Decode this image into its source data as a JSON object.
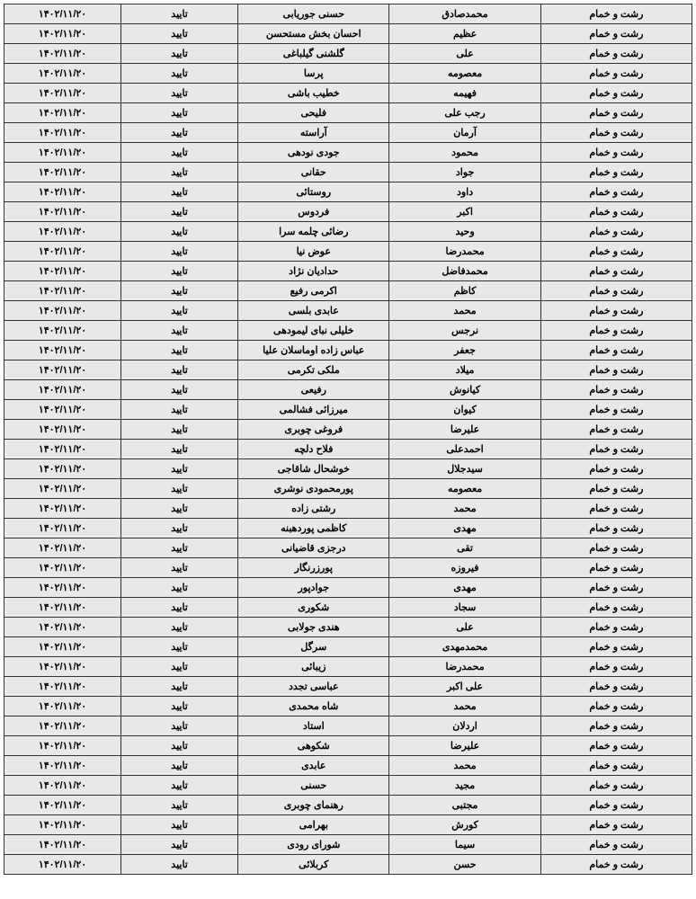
{
  "table": {
    "background_color": "#e8e8e8",
    "border_color": "#333333",
    "text_color": "#000000",
    "font_size": 11,
    "font_weight": "bold",
    "columns": [
      "city",
      "first_name",
      "last_name",
      "status",
      "date"
    ],
    "rows": [
      {
        "city": "رشت و خمام",
        "first_name": "محمدصادق",
        "last_name": "حسنی جوریابی",
        "status": "تایید",
        "date": "۱۴۰۲/۱۱/۲۰"
      },
      {
        "city": "رشت و خمام",
        "first_name": "عظیم",
        "last_name": "احسان بخش مستحسن",
        "status": "تایید",
        "date": "۱۴۰۲/۱۱/۲۰"
      },
      {
        "city": "رشت و خمام",
        "first_name": "علی",
        "last_name": "گلشنی گیلباغی",
        "status": "تایید",
        "date": "۱۴۰۲/۱۱/۲۰"
      },
      {
        "city": "رشت و خمام",
        "first_name": "معصومه",
        "last_name": "پرسا",
        "status": "تایید",
        "date": "۱۴۰۲/۱۱/۲۰"
      },
      {
        "city": "رشت و خمام",
        "first_name": "فهیمه",
        "last_name": "خطیب باشی",
        "status": "تایید",
        "date": "۱۴۰۲/۱۱/۲۰"
      },
      {
        "city": "رشت و خمام",
        "first_name": "رجب علی",
        "last_name": "فلیحی",
        "status": "تایید",
        "date": "۱۴۰۲/۱۱/۲۰"
      },
      {
        "city": "رشت و خمام",
        "first_name": "آرمان",
        "last_name": "آراسته",
        "status": "تایید",
        "date": "۱۴۰۲/۱۱/۲۰"
      },
      {
        "city": "رشت و خمام",
        "first_name": "محمود",
        "last_name": "جودی نودهی",
        "status": "تایید",
        "date": "۱۴۰۲/۱۱/۲۰"
      },
      {
        "city": "رشت و خمام",
        "first_name": "جواد",
        "last_name": "حقانی",
        "status": "تایید",
        "date": "۱۴۰۲/۱۱/۲۰"
      },
      {
        "city": "رشت و خمام",
        "first_name": "داود",
        "last_name": "روستائی",
        "status": "تایید",
        "date": "۱۴۰۲/۱۱/۲۰"
      },
      {
        "city": "رشت و خمام",
        "first_name": "اکبر",
        "last_name": "فردوس",
        "status": "تایید",
        "date": "۱۴۰۲/۱۱/۲۰"
      },
      {
        "city": "رشت و خمام",
        "first_name": "وحید",
        "last_name": "رضائی چلمه سرا",
        "status": "تایید",
        "date": "۱۴۰۲/۱۱/۲۰"
      },
      {
        "city": "رشت و خمام",
        "first_name": "محمدرضا",
        "last_name": "عوض نیا",
        "status": "تایید",
        "date": "۱۴۰۲/۱۱/۲۰"
      },
      {
        "city": "رشت و خمام",
        "first_name": "محمدفاضل",
        "last_name": "حدادیان نژاد",
        "status": "تایید",
        "date": "۱۴۰۲/۱۱/۲۰"
      },
      {
        "city": "رشت و خمام",
        "first_name": "کاظم",
        "last_name": "اکرمی رفیع",
        "status": "تایید",
        "date": "۱۴۰۲/۱۱/۲۰"
      },
      {
        "city": "رشت و خمام",
        "first_name": "محمد",
        "last_name": "عابدی بلسی",
        "status": "تایید",
        "date": "۱۴۰۲/۱۱/۲۰"
      },
      {
        "city": "رشت و خمام",
        "first_name": "نرجس",
        "last_name": "خلیلی نبای لیمودهی",
        "status": "تایید",
        "date": "۱۴۰۲/۱۱/۲۰"
      },
      {
        "city": "رشت و خمام",
        "first_name": "جعفر",
        "last_name": "عباس زاده اوماسلان علیا",
        "status": "تایید",
        "date": "۱۴۰۲/۱۱/۲۰"
      },
      {
        "city": "رشت و خمام",
        "first_name": "میلاد",
        "last_name": "ملکی تکرمی",
        "status": "تایید",
        "date": "۱۴۰۲/۱۱/۲۰"
      },
      {
        "city": "رشت و خمام",
        "first_name": "کیانوش",
        "last_name": "رفیعی",
        "status": "تایید",
        "date": "۱۴۰۲/۱۱/۲۰"
      },
      {
        "city": "رشت و خمام",
        "first_name": "کیوان",
        "last_name": "میرزائی فشالمی",
        "status": "تایید",
        "date": "۱۴۰۲/۱۱/۲۰"
      },
      {
        "city": "رشت و خمام",
        "first_name": "علیرضا",
        "last_name": "فروغی چوبری",
        "status": "تایید",
        "date": "۱۴۰۲/۱۱/۲۰"
      },
      {
        "city": "رشت و خمام",
        "first_name": "احمدعلی",
        "last_name": "فلاح دلچه",
        "status": "تایید",
        "date": "۱۴۰۲/۱۱/۲۰"
      },
      {
        "city": "رشت و خمام",
        "first_name": "سیدجلال",
        "last_name": "خوشحال شاقاجی",
        "status": "تایید",
        "date": "۱۴۰۲/۱۱/۲۰"
      },
      {
        "city": "رشت و خمام",
        "first_name": "معصومه",
        "last_name": "پورمحمودی نوشری",
        "status": "تایید",
        "date": "۱۴۰۲/۱۱/۲۰"
      },
      {
        "city": "رشت و خمام",
        "first_name": "محمد",
        "last_name": "رشتی زاده",
        "status": "تایید",
        "date": "۱۴۰۲/۱۱/۲۰"
      },
      {
        "city": "رشت و خمام",
        "first_name": "مهدی",
        "last_name": "کاظمی پوردهبنه",
        "status": "تایید",
        "date": "۱۴۰۲/۱۱/۲۰"
      },
      {
        "city": "رشت و خمام",
        "first_name": "تقی",
        "last_name": "درجزی قاضیانی",
        "status": "تایید",
        "date": "۱۴۰۲/۱۱/۲۰"
      },
      {
        "city": "رشت و خمام",
        "first_name": "فیروزه",
        "last_name": "پورزرنگار",
        "status": "تایید",
        "date": "۱۴۰۲/۱۱/۲۰"
      },
      {
        "city": "رشت و خمام",
        "first_name": "مهدی",
        "last_name": "جوادپور",
        "status": "تایید",
        "date": "۱۴۰۲/۱۱/۲۰"
      },
      {
        "city": "رشت و خمام",
        "first_name": "سجاد",
        "last_name": "شکوری",
        "status": "تایید",
        "date": "۱۴۰۲/۱۱/۲۰"
      },
      {
        "city": "رشت و خمام",
        "first_name": "علی",
        "last_name": "هندی جولابی",
        "status": "تایید",
        "date": "۱۴۰۲/۱۱/۲۰"
      },
      {
        "city": "رشت و خمام",
        "first_name": "محمدمهدی",
        "last_name": "سرگل",
        "status": "تایید",
        "date": "۱۴۰۲/۱۱/۲۰"
      },
      {
        "city": "رشت و خمام",
        "first_name": "محمدرضا",
        "last_name": "زیبائی",
        "status": "تایید",
        "date": "۱۴۰۲/۱۱/۲۰"
      },
      {
        "city": "رشت و خمام",
        "first_name": "علی اکبر",
        "last_name": "عباسی تجدد",
        "status": "تایید",
        "date": "۱۴۰۲/۱۱/۲۰"
      },
      {
        "city": "رشت و خمام",
        "first_name": "محمد",
        "last_name": "شاه محمدی",
        "status": "تایید",
        "date": "۱۴۰۲/۱۱/۲۰"
      },
      {
        "city": "رشت و خمام",
        "first_name": "اردلان",
        "last_name": "استاد",
        "status": "تایید",
        "date": "۱۴۰۲/۱۱/۲۰"
      },
      {
        "city": "رشت و خمام",
        "first_name": "علیرضا",
        "last_name": "شکوهی",
        "status": "تایید",
        "date": "۱۴۰۲/۱۱/۲۰"
      },
      {
        "city": "رشت و خمام",
        "first_name": "محمد",
        "last_name": "عابدی",
        "status": "تایید",
        "date": "۱۴۰۲/۱۱/۲۰"
      },
      {
        "city": "رشت و خمام",
        "first_name": "مجید",
        "last_name": "حسنی",
        "status": "تایید",
        "date": "۱۴۰۲/۱۱/۲۰"
      },
      {
        "city": "رشت و خمام",
        "first_name": "مجتبی",
        "last_name": "رهنمای چوبری",
        "status": "تایید",
        "date": "۱۴۰۲/۱۱/۲۰"
      },
      {
        "city": "رشت و خمام",
        "first_name": "کورش",
        "last_name": "بهرامی",
        "status": "تایید",
        "date": "۱۴۰۲/۱۱/۲۰"
      },
      {
        "city": "رشت و خمام",
        "first_name": "سیما",
        "last_name": "شورای رودی",
        "status": "تایید",
        "date": "۱۴۰۲/۱۱/۲۰"
      },
      {
        "city": "رشت و خمام",
        "first_name": "حسن",
        "last_name": "کربلائی",
        "status": "تایید",
        "date": "۱۴۰۲/۱۱/۲۰"
      }
    ]
  }
}
